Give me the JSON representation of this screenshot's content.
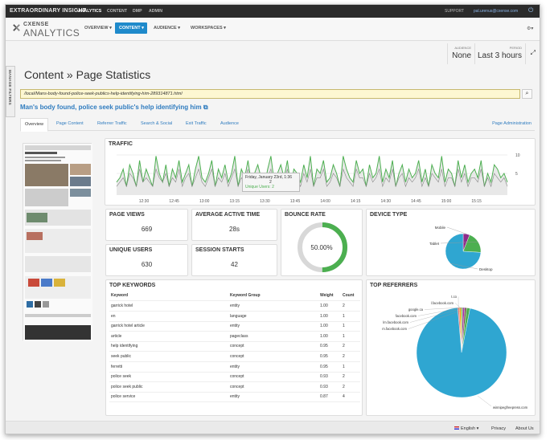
{
  "topbar": {
    "brand": "EXTRAORDINARY INSIGHT",
    "nav": [
      "ANALYTICS",
      "CONTENT",
      "DMP",
      "ADMIN"
    ],
    "support": "SUPPORT",
    "email": "pal.urenus@cxense.com"
  },
  "app": {
    "logo_top": "CXENSE",
    "logo_bottom": "ANALYTICS",
    "menu": [
      "OVERVIEW ▾",
      "CONTENT ▾",
      "AUDIENCE ▾",
      "WORKSPACES ▾"
    ]
  },
  "filters": {
    "side_tab": "MANAGE FILTERS",
    "audience_label": "AUDIENCE",
    "audience_value": "None",
    "period_label": "PERIOD",
    "period_value": "Last 3 hours"
  },
  "page": {
    "title": "Content » Page Statistics",
    "url": "/local/Mans-body-found-police-seek-publics-help-identifying-him-289314871.html",
    "headline": "Man's body found, police seek public's help identifying him ⧉",
    "tabs": [
      "Overview",
      "Page Content",
      "Referrer Traffic",
      "Search & Social",
      "Exit Traffic",
      "Audience"
    ],
    "admin": "Page Administration"
  },
  "traffic": {
    "title": "TRAFFIC",
    "tooltip_date": "Friday, January 23rd, 1:36",
    "tooltip_value": "2",
    "tooltip_unique": "Unique Users: 2",
    "y_top": "10",
    "y_mid": "5"
  },
  "chart_data": {
    "type": "line",
    "x_ticks": [
      "12:30",
      "12:45",
      "13:00",
      "13:15",
      "13:30",
      "13:45",
      "14:00",
      "14:15",
      "14:30",
      "14:45",
      "15:00",
      "15:15"
    ],
    "ylim": [
      0,
      10
    ],
    "series": [
      {
        "values": [
          3,
          4,
          6,
          2,
          7,
          5,
          2,
          8,
          3,
          6,
          4,
          2,
          9,
          5,
          3,
          7,
          2,
          6,
          4,
          8,
          3,
          5,
          7,
          2,
          6,
          9,
          4,
          3,
          5,
          8,
          2,
          6,
          4,
          7,
          3,
          5,
          9,
          2,
          6,
          4,
          8,
          3,
          5,
          7,
          4,
          2,
          6,
          9,
          3,
          5,
          7,
          4,
          8,
          2,
          6,
          5,
          3,
          7,
          4,
          9,
          2,
          6,
          5,
          8,
          3,
          4,
          7,
          5,
          2,
          9,
          6,
          4,
          3,
          8,
          5,
          6,
          2,
          7,
          4,
          5,
          9,
          3,
          6,
          4,
          8,
          2,
          5,
          7,
          3,
          6,
          4,
          5,
          8,
          3,
          6,
          2,
          7,
          5,
          4,
          9,
          3,
          6,
          5,
          2,
          8,
          4,
          7,
          3,
          5,
          6,
          4,
          8,
          2,
          5,
          3,
          7,
          6,
          4,
          5,
          3
        ]
      },
      {
        "values": [
          2,
          3,
          4,
          2,
          5,
          4,
          2,
          6,
          3,
          4,
          3,
          2,
          6,
          4,
          3,
          5,
          2,
          4,
          3,
          6,
          2,
          4,
          5,
          2,
          4,
          6,
          3,
          2,
          4,
          6,
          2,
          4,
          3,
          5,
          2,
          4,
          6,
          2,
          4,
          3,
          6,
          2,
          4,
          5,
          3,
          2,
          4,
          6,
          2,
          4,
          5,
          3,
          6,
          2,
          4,
          4,
          2,
          5,
          3,
          6,
          2,
          4,
          4,
          6,
          2,
          3,
          5,
          4,
          2,
          6,
          4,
          3,
          2,
          6,
          4,
          4,
          2,
          5,
          3,
          4,
          6,
          2,
          4,
          3,
          6,
          2,
          4,
          5,
          2,
          4,
          3,
          4,
          6,
          2,
          4,
          2,
          5,
          4,
          3,
          6,
          2,
          4,
          4,
          2,
          6,
          3,
          5,
          2,
          4,
          4,
          3,
          6,
          2,
          4,
          2,
          5,
          4,
          3,
          4,
          2
        ]
      }
    ]
  },
  "metrics": {
    "page_views_label": "PAGE VIEWS",
    "page_views": "669",
    "active_time_label": "AVERAGE ACTIVE TIME",
    "active_time": "28s",
    "unique_users_label": "UNIQUE USERS",
    "unique_users": "630",
    "session_starts_label": "SESSION STARTS",
    "session_starts": "42",
    "bounce_label": "BOUNCE RATE",
    "bounce_value": "50.00%",
    "bounce_fraction": 0.5
  },
  "device": {
    "title": "DEVICE TYPE",
    "labels": [
      "Mobile",
      "Tablet",
      "Desktop"
    ],
    "values": [
      6,
      20,
      74
    ],
    "colors": [
      "#8e2b8a",
      "#4caf50",
      "#2fa6d1"
    ]
  },
  "keywords": {
    "title": "TOP KEYWORDS",
    "headers": [
      "Keyword",
      "Keyword Group",
      "Weight",
      "Count"
    ],
    "rows": [
      [
        "garrick hotel",
        "entity",
        "1.00",
        "2"
      ],
      [
        "en",
        "language",
        "1.00",
        "1"
      ],
      [
        "garrick hotel article",
        "entity",
        "1.00",
        "1"
      ],
      [
        "article",
        "pageclass",
        "1.00",
        "1"
      ],
      [
        "help identifying",
        "concept",
        "0.95",
        "2"
      ],
      [
        "seek public",
        "concept",
        "0.95",
        "2"
      ],
      [
        "ferretti",
        "entity",
        "0.95",
        "1"
      ],
      [
        "police seek",
        "concept",
        "0.93",
        "2"
      ],
      [
        "police seek public",
        "concept",
        "0.93",
        "2"
      ],
      [
        "police service",
        "entity",
        "0.87",
        "4"
      ]
    ]
  },
  "referrers": {
    "title": "TOP REFERRERS",
    "labels": [
      "t.co",
      "l.facebook.com",
      "google.ca",
      "facebook.com",
      "lm.facebook.com",
      "m.facebook.com",
      "winnipegfreepress.com"
    ],
    "values": [
      0.6,
      0.6,
      0.6,
      0.7,
      0.7,
      1.2,
      95.6
    ],
    "colors": [
      "#e57373",
      "#ff9800",
      "#8bc34a",
      "#9c27b0",
      "#795548",
      "#4caf50",
      "#2fa6d1"
    ]
  },
  "footer": {
    "language": "English ▾",
    "privacy": "Privacy",
    "about": "About Us"
  }
}
